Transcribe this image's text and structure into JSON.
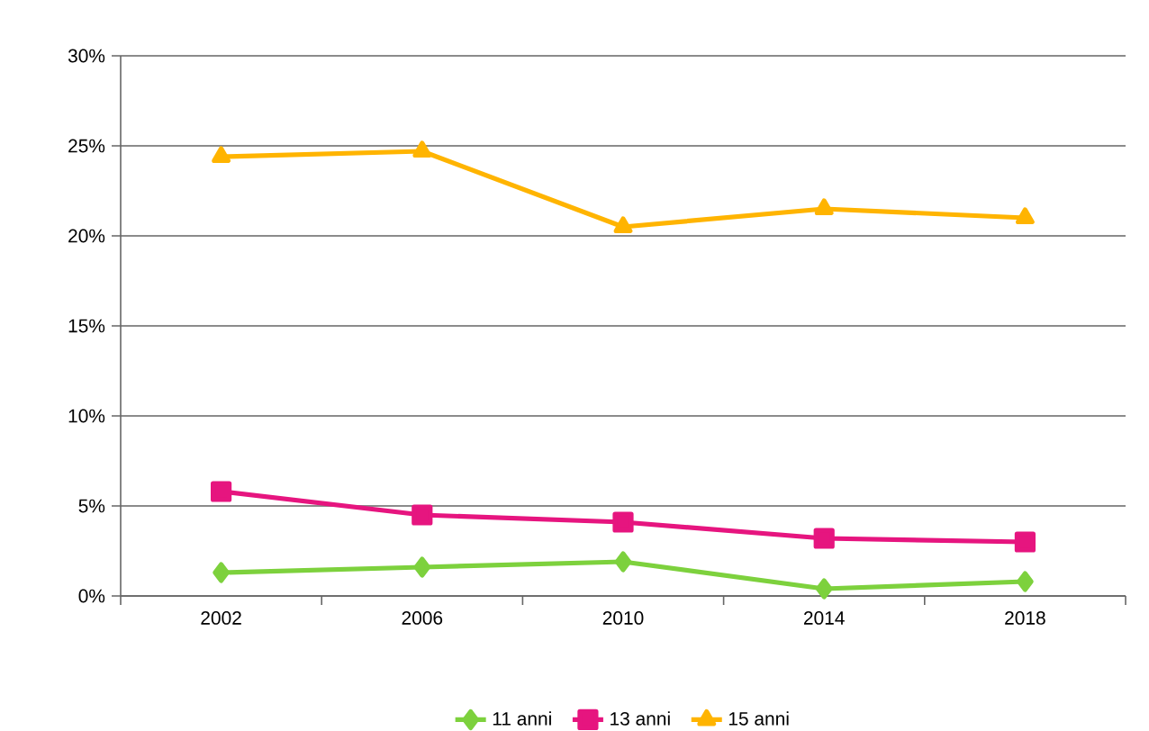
{
  "chart_data": {
    "type": "line",
    "categories": [
      "2002",
      "2006",
      "2010",
      "2014",
      "2018"
    ],
    "series": [
      {
        "name": "11 anni",
        "color": "#7dd13d",
        "marker": "diamond",
        "values": [
          1.3,
          1.6,
          1.9,
          0.4,
          0.8
        ]
      },
      {
        "name": "13 anni",
        "color": "#e6157f",
        "marker": "square",
        "values": [
          5.8,
          4.5,
          4.1,
          3.2,
          3.0
        ]
      },
      {
        "name": "15 anni",
        "color": "#ffb400",
        "marker": "triangle",
        "values": [
          24.4,
          24.7,
          20.5,
          21.5,
          21.0
        ]
      }
    ],
    "ylim": [
      0,
      30
    ],
    "yticks": [
      {
        "value": 0,
        "label": "0%"
      },
      {
        "value": 5,
        "label": "5%"
      },
      {
        "value": 10,
        "label": "10%"
      },
      {
        "value": 15,
        "label": "15%"
      },
      {
        "value": 20,
        "label": "20%"
      },
      {
        "value": 25,
        "label": "25%"
      },
      {
        "value": 30,
        "label": "30%"
      }
    ],
    "grid": "y",
    "legend": "bottom",
    "line_style": "solid"
  }
}
